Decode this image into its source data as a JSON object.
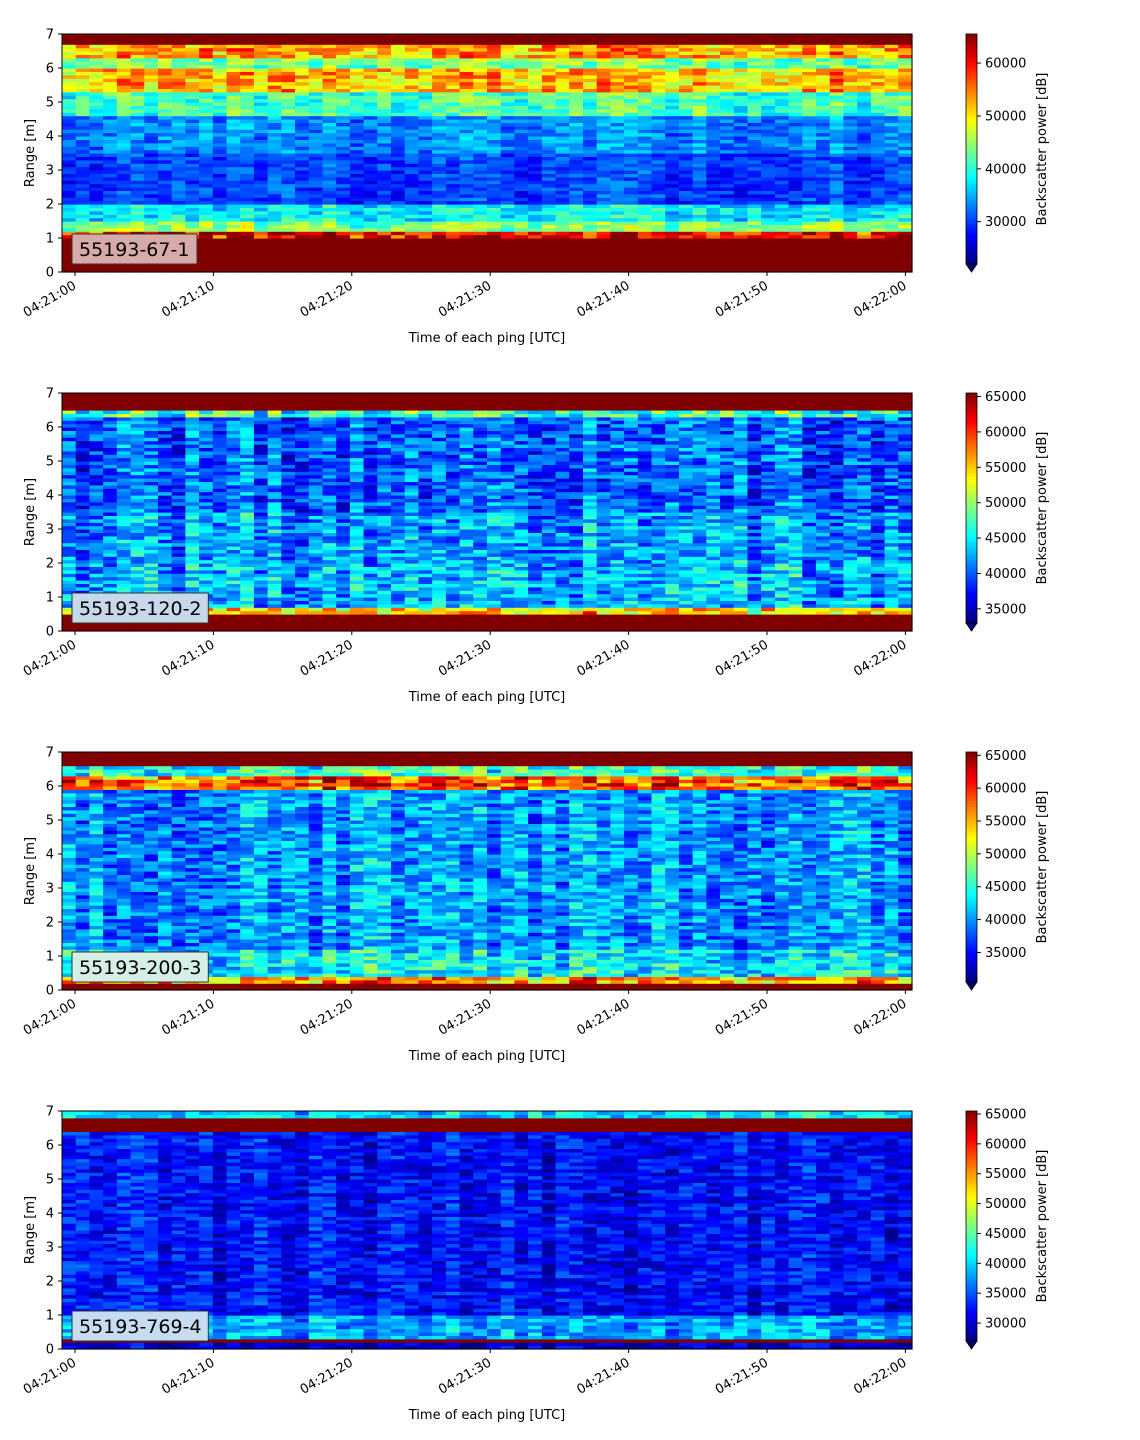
{
  "figure": {
    "xlabel": "Time of each ping [UTC]",
    "ylabel": "Range [m]",
    "colorbar_label": "Backscatter power [dB]",
    "x_ticks": [
      "04:21:00",
      "04:21:10",
      "04:21:20",
      "04:21:30",
      "04:21:40",
      "04:21:50",
      "04:22:00"
    ],
    "y_ticks": [
      "0",
      "1",
      "2",
      "3",
      "4",
      "5",
      "6",
      "7"
    ]
  },
  "chart_data": [
    {
      "type": "heatmap",
      "panel_label": "55193-67-1",
      "label_box_color": "#d6aaa8",
      "xlabel": "Time of each ping [UTC]",
      "ylabel": "Range [m]",
      "xlim": [
        "04:21:00",
        "04:22:00"
      ],
      "ylim": [
        0,
        7
      ],
      "colormap": "jet",
      "color_range": [
        22000,
        65500
      ],
      "colorbar_label": "Backscatter power [dB]",
      "colorbar_ticks": [
        30000,
        40000,
        50000,
        60000
      ],
      "colorbar_extend": "min",
      "bands": [
        {
          "range": [
            0.0,
            0.25
          ],
          "value": 65500
        },
        {
          "range": [
            0.25,
            1.0
          ],
          "value": 65500
        },
        {
          "range": [
            1.0,
            1.2
          ],
          "value": 60000
        },
        {
          "range": [
            1.2,
            1.5
          ],
          "value": 44000
        },
        {
          "range": [
            1.5,
            2.0
          ],
          "value": 38000
        },
        {
          "range": [
            2.0,
            3.5
          ],
          "value": 30000
        },
        {
          "range": [
            3.5,
            4.6
          ],
          "value": 33000
        },
        {
          "range": [
            4.6,
            5.3
          ],
          "value": 41000
        },
        {
          "range": [
            5.3,
            6.0
          ],
          "value": 52000
        },
        {
          "range": [
            6.0,
            6.35
          ],
          "value": 43000
        },
        {
          "range": [
            6.35,
            6.75
          ],
          "value": 53000
        },
        {
          "range": [
            6.75,
            7.0
          ],
          "value": 65500
        }
      ]
    },
    {
      "type": "heatmap",
      "panel_label": "55193-120-2",
      "label_box_color": "#c6d8ea",
      "xlabel": "Time of each ping [UTC]",
      "ylabel": "Range [m]",
      "xlim": [
        "04:21:00",
        "04:22:00"
      ],
      "ylim": [
        0,
        7
      ],
      "colormap": "jet",
      "color_range": [
        33000,
        65500
      ],
      "colorbar_label": "Backscatter power [dB]",
      "colorbar_ticks": [
        35000,
        40000,
        45000,
        50000,
        55000,
        60000,
        65000
      ],
      "colorbar_extend": "min",
      "bands": [
        {
          "range": [
            0.0,
            0.15
          ],
          "value": 65500
        },
        {
          "range": [
            0.15,
            0.55
          ],
          "value": 65500
        },
        {
          "range": [
            0.55,
            0.75
          ],
          "value": 54000
        },
        {
          "range": [
            0.75,
            2.0
          ],
          "value": 43000
        },
        {
          "range": [
            2.0,
            3.5
          ],
          "value": 42000
        },
        {
          "range": [
            3.5,
            6.3
          ],
          "value": 40000
        },
        {
          "range": [
            6.3,
            6.55
          ],
          "value": 47000
        },
        {
          "range": [
            6.55,
            7.0
          ],
          "value": 65500
        }
      ]
    },
    {
      "type": "heatmap",
      "panel_label": "55193-200-3",
      "label_box_color": "#d5eee6",
      "xlabel": "Time of each ping [UTC]",
      "ylabel": "Range [m]",
      "xlim": [
        "04:21:00",
        "04:22:00"
      ],
      "ylim": [
        0,
        7
      ],
      "colormap": "jet",
      "color_range": [
        30500,
        65500
      ],
      "colorbar_label": "Backscatter power [dB]",
      "colorbar_ticks": [
        35000,
        40000,
        45000,
        50000,
        55000,
        60000,
        65000
      ],
      "colorbar_extend": "min",
      "bands": [
        {
          "range": [
            0.0,
            0.25
          ],
          "value": 65500
        },
        {
          "range": [
            0.25,
            0.4
          ],
          "value": 56000
        },
        {
          "range": [
            0.4,
            1.2
          ],
          "value": 43000
        },
        {
          "range": [
            1.2,
            5.9
          ],
          "value": 40000
        },
        {
          "range": [
            5.9,
            6.3
          ],
          "value": 58000
        },
        {
          "range": [
            6.3,
            6.6
          ],
          "value": 45000
        },
        {
          "range": [
            6.6,
            7.0
          ],
          "value": 65500
        }
      ]
    },
    {
      "type": "heatmap",
      "panel_label": "55193-769-4",
      "label_box_color": "#c6dcf0",
      "xlabel": "Time of each ping [UTC]",
      "ylabel": "Range [m]",
      "xlim": [
        "04:21:00",
        "04:22:00"
      ],
      "ylim": [
        0,
        7
      ],
      "colormap": "jet",
      "color_range": [
        27000,
        65500
      ],
      "colorbar_label": "Backscatter power [dB]",
      "colorbar_ticks": [
        30000,
        35000,
        40000,
        45000,
        50000,
        55000,
        60000,
        65000
      ],
      "colorbar_extend": "min",
      "bands": [
        {
          "range": [
            0.0,
            0.2
          ],
          "value": 30000
        },
        {
          "range": [
            0.2,
            0.35
          ],
          "value": 65500
        },
        {
          "range": [
            0.35,
            1.0
          ],
          "value": 38000
        },
        {
          "range": [
            1.0,
            6.45
          ],
          "value": 32000
        },
        {
          "range": [
            6.45,
            6.8
          ],
          "value": 65500
        },
        {
          "range": [
            6.8,
            7.0
          ],
          "value": 40000
        }
      ]
    }
  ]
}
